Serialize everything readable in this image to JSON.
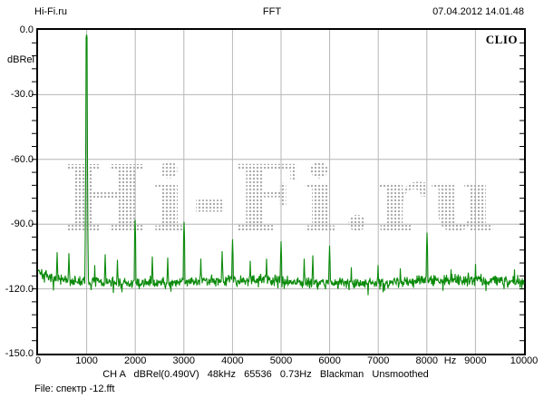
{
  "header": {
    "site": "Hi-Fi.ru",
    "title": "FFT",
    "datetime": "07.04.2012 14.01.48"
  },
  "plot": {
    "brand": "CLIO",
    "watermark": "Hi-Fi.ru"
  },
  "status_bar": {
    "text": "CH A   dBRel(0.490V)   48kHz   65536   0.73Hz   Blackman   Unsmoothed",
    "channel": "CH A",
    "reference": "dBRel(0.490V)",
    "sample_rate": "48kHz",
    "fft_size": "65536",
    "resolution": "0.73Hz",
    "window": "Blackman",
    "smoothing": "Unsmoothed"
  },
  "file_line": "File: спектр -12.fft",
  "chart_data": {
    "type": "line",
    "title": "FFT",
    "xlabel": "Hz",
    "ylabel": "dBRel",
    "xlim": [
      0,
      10000
    ],
    "ylim": [
      -150,
      0
    ],
    "grid": true,
    "x_gridline_step_hz": 1000,
    "y_gridline_step_db": 30,
    "y_minor_tick_step_db": 6,
    "trace_color": "#0a8a0a",
    "grid_color": "#b6b6b6",
    "y_ticks": [
      {
        "db": 0,
        "label": "0.0"
      },
      {
        "db": -30,
        "label": "-30.0"
      },
      {
        "db": -60,
        "label": "-60.0"
      },
      {
        "db": -90,
        "label": "-90.0"
      },
      {
        "db": -120,
        "label": "-120.0"
      },
      {
        "db": -150,
        "label": "-150.0"
      }
    ],
    "x_ticks": [
      {
        "hz": 0,
        "label": "0"
      },
      {
        "hz": 1000,
        "label": "1000"
      },
      {
        "hz": 2000,
        "label": "2000"
      },
      {
        "hz": 3000,
        "label": "3000"
      },
      {
        "hz": 4000,
        "label": "4000"
      },
      {
        "hz": 5000,
        "label": "5000"
      },
      {
        "hz": 6000,
        "label": "6000"
      },
      {
        "hz": 7000,
        "label": "7000"
      },
      {
        "hz": 8000,
        "label": "8000"
      },
      {
        "hz": 9000,
        "label": "9000"
      },
      {
        "hz": 10000,
        "label": "10000"
      }
    ],
    "x_unit_label": {
      "text": "Hz",
      "hz": 8480
    },
    "noise_floor_db": -116.5,
    "noise_peak_to_peak_db": 8,
    "low_freq_noise_rise_db": 5,
    "peaks": [
      {
        "hz": 390,
        "db": -103
      },
      {
        "hz": 630,
        "db": -103.5
      },
      {
        "hz": 1000,
        "db": -2.2
      },
      {
        "hz": 1170,
        "db": -109
      },
      {
        "hz": 1380,
        "db": -104
      },
      {
        "hz": 1630,
        "db": -106.5
      },
      {
        "hz": 2000,
        "db": -88
      },
      {
        "hz": 2350,
        "db": -105
      },
      {
        "hz": 2670,
        "db": -105.5
      },
      {
        "hz": 3000,
        "db": -89
      },
      {
        "hz": 3350,
        "db": -106
      },
      {
        "hz": 3790,
        "db": -102.5
      },
      {
        "hz": 4000,
        "db": -97
      },
      {
        "hz": 4370,
        "db": -107
      },
      {
        "hz": 4700,
        "db": -106
      },
      {
        "hz": 5000,
        "db": -98
      },
      {
        "hz": 5480,
        "db": -106
      },
      {
        "hz": 5650,
        "db": -104.5
      },
      {
        "hz": 6000,
        "db": -100
      },
      {
        "hz": 6450,
        "db": -110
      },
      {
        "hz": 7000,
        "db": -109
      },
      {
        "hz": 7450,
        "db": -110.5
      },
      {
        "hz": 8000,
        "db": -94
      },
      {
        "hz": 8500,
        "db": -111
      },
      {
        "hz": 9000,
        "db": -108.5
      },
      {
        "hz": 9800,
        "db": -111
      }
    ]
  }
}
